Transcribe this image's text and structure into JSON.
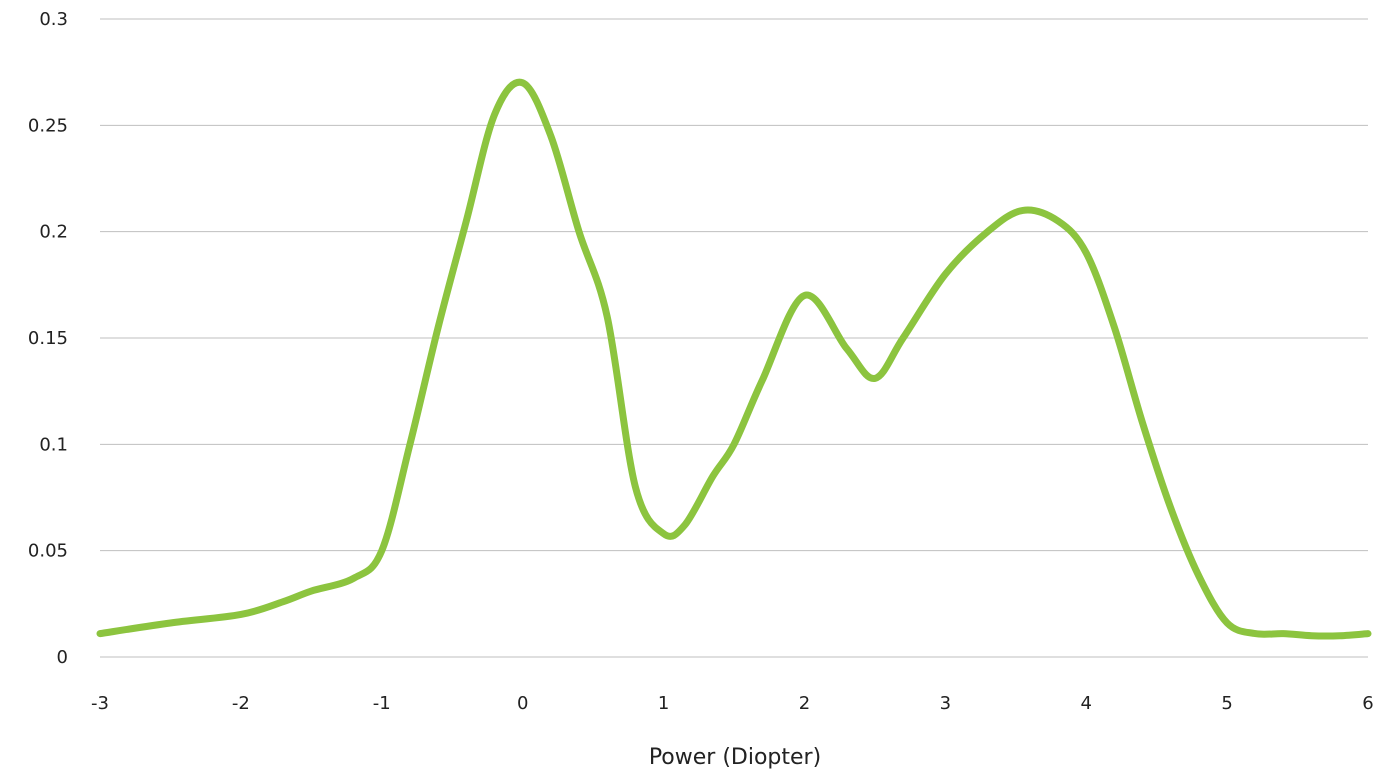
{
  "chart_data": {
    "type": "line",
    "title": "",
    "xlabel": "Power (Diopter)",
    "ylabel": "",
    "xlim": [
      -3,
      6
    ],
    "ylim": [
      0,
      0.3
    ],
    "x_ticks": [
      "-3",
      "-2",
      "-1",
      "0",
      "1",
      "2",
      "3",
      "4",
      "5",
      "6"
    ],
    "y_ticks": [
      "0",
      "0.05",
      "0.1",
      "0.15",
      "0.2",
      "0.25",
      "0.3"
    ],
    "grid": "horizontal",
    "legend": "none",
    "line_color": "#8cc43f",
    "grid_color": "#bfbfbf",
    "series": [
      {
        "x": [
          -3,
          -2.5,
          -2,
          -1.7,
          -1.5,
          -1.2,
          -1.0,
          -0.8,
          -0.6,
          -0.4,
          -0.2,
          0,
          0.2,
          0.4,
          0.6,
          0.8,
          1.0,
          1.15,
          1.35,
          1.5,
          1.7,
          2.0,
          2.3,
          2.5,
          2.7,
          3.0,
          3.3,
          3.55,
          3.8,
          4.0,
          4.2,
          4.4,
          4.6,
          4.8,
          5.0,
          5.2,
          5.4,
          5.6,
          5.8,
          6.0
        ],
        "y": [
          0.011,
          0.016,
          0.02,
          0.026,
          0.031,
          0.037,
          0.05,
          0.1,
          0.155,
          0.205,
          0.255,
          0.27,
          0.245,
          0.2,
          0.16,
          0.08,
          0.058,
          0.062,
          0.085,
          0.1,
          0.13,
          0.17,
          0.145,
          0.131,
          0.15,
          0.18,
          0.2,
          0.21,
          0.205,
          0.19,
          0.155,
          0.11,
          0.07,
          0.038,
          0.016,
          0.011,
          0.011,
          0.01,
          0.01,
          0.011
        ]
      }
    ]
  }
}
